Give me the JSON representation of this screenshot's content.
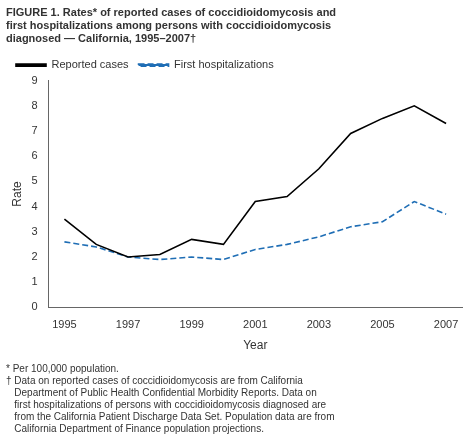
{
  "chart_data": {
    "type": "line",
    "title": "FIGURE 1. Rates* of reported cases of coccidioidomycosis and\nfirst hospitalizations among persons with coccidioidomycosis\ndiagnosed — California, 1995–2007†",
    "x": [
      1995,
      1996,
      1997,
      1998,
      1999,
      2000,
      2001,
      2002,
      2003,
      2004,
      2005,
      2006,
      2007
    ],
    "series": [
      {
        "name": "Reported cases",
        "color": "#000000",
        "line_style": "solid",
        "values": [
          3.5,
          2.5,
          2.0,
          2.1,
          2.7,
          2.5,
          4.2,
          4.4,
          5.5,
          6.9,
          7.5,
          8.0,
          7.3
        ]
      },
      {
        "name": "First hospitalizations",
        "color": "#1f6eb5",
        "line_style": "dashed",
        "values": [
          2.6,
          2.4,
          2.0,
          1.9,
          2.0,
          1.9,
          2.3,
          2.5,
          2.8,
          3.2,
          3.4,
          4.2,
          3.7
        ]
      }
    ],
    "xlabel": "Year",
    "ylabel": "Rate",
    "xlim": [
      1994.5,
      2007.5
    ],
    "xticks": [
      1995,
      1997,
      1999,
      2001,
      2003,
      2005,
      2007
    ],
    "ylim": [
      0,
      9
    ],
    "yticks": [
      0,
      1,
      2,
      3,
      4,
      5,
      6,
      7,
      8,
      9
    ],
    "legend": "upper left",
    "grid": false,
    "annotations": [
      "* Per 100,000 population.",
      "† Data on reported cases of coccidioidomycosis are from California\n   Department of Public Health Confidential Morbidity Reports. Data on\n   first hospitalizations of persons with coccidioidomycosis diagnosed are\n   from the California Patient Discharge Data Set. Population data are from\n   California Department of Finance population projections."
    ]
  }
}
